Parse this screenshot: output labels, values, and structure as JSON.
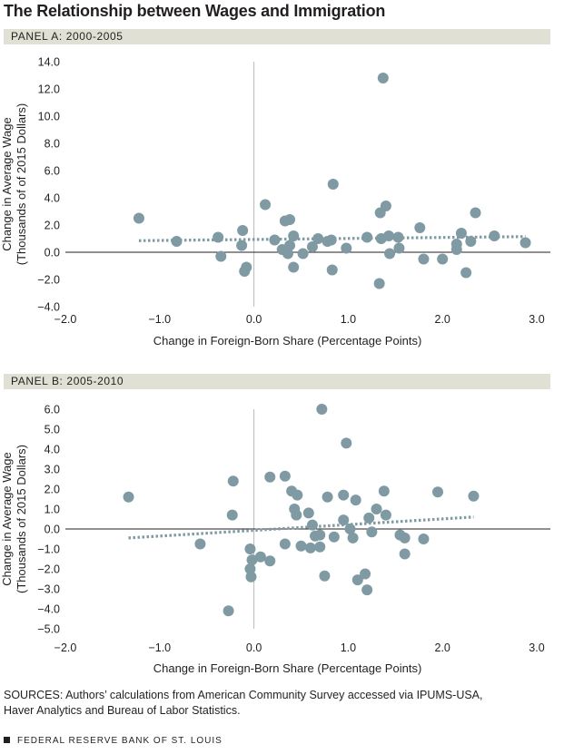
{
  "title": "The Relationship between Wages and Immigration",
  "colors": {
    "point": "#7f9aa3",
    "trend": "#7f9aa3",
    "panel_bar": "#e1e0d4",
    "axis": "#231f20"
  },
  "chart_data": [
    {
      "type": "scatter",
      "panel_label": "PANEL A: 2000-2005",
      "xlabel": "Change in Foreign-Born Share (Percentage Points)",
      "ylabel_line1": "Change in Average Wage",
      "ylabel_line2": "(Thousands of of 2015 Dollars)",
      "xlim": [
        -2.0,
        3.0
      ],
      "ylim": [
        -4.0,
        14.0
      ],
      "xticks": [
        "−2.0",
        "−1.0",
        "0.0",
        "1.0",
        "2.0",
        "3.0"
      ],
      "yticks": [
        "14.0",
        "12.0",
        "10.0",
        "8.0",
        "6.0",
        "4.0",
        "2.0",
        "0.0",
        "−2.0",
        "−4.0"
      ],
      "trend_line": {
        "x": [
          -1.22,
          2.88
        ],
        "y": [
          0.85,
          1.15
        ]
      },
      "points": [
        {
          "x": -1.22,
          "y": 2.5
        },
        {
          "x": -0.82,
          "y": 0.8
        },
        {
          "x": -0.38,
          "y": 1.1
        },
        {
          "x": -0.35,
          "y": -0.3
        },
        {
          "x": -0.13,
          "y": 0.5
        },
        {
          "x": -0.12,
          "y": 1.6
        },
        {
          "x": -0.1,
          "y": -1.4
        },
        {
          "x": -0.08,
          "y": -1.1
        },
        {
          "x": 0.12,
          "y": 3.5
        },
        {
          "x": 0.22,
          "y": 0.9
        },
        {
          "x": 0.3,
          "y": 0.2
        },
        {
          "x": 0.33,
          "y": 2.3
        },
        {
          "x": 0.36,
          "y": -0.1
        },
        {
          "x": 0.38,
          "y": 2.4
        },
        {
          "x": 0.38,
          "y": 0.5
        },
        {
          "x": 0.42,
          "y": -1.1
        },
        {
          "x": 0.42,
          "y": 1.2
        },
        {
          "x": 0.52,
          "y": -0.1
        },
        {
          "x": 0.62,
          "y": 0.4
        },
        {
          "x": 0.68,
          "y": 1.0
        },
        {
          "x": 0.78,
          "y": 0.8
        },
        {
          "x": 0.82,
          "y": 0.9
        },
        {
          "x": 0.83,
          "y": -1.3
        },
        {
          "x": 0.84,
          "y": 5.0
        },
        {
          "x": 0.98,
          "y": 0.3
        },
        {
          "x": 1.2,
          "y": 1.1
        },
        {
          "x": 1.33,
          "y": -2.3
        },
        {
          "x": 1.34,
          "y": 2.9
        },
        {
          "x": 1.35,
          "y": 1.0
        },
        {
          "x": 1.37,
          "y": 12.8
        },
        {
          "x": 1.4,
          "y": 3.4
        },
        {
          "x": 1.43,
          "y": 1.2
        },
        {
          "x": 1.44,
          "y": -0.1
        },
        {
          "x": 1.53,
          "y": 1.1
        },
        {
          "x": 1.54,
          "y": 0.3
        },
        {
          "x": 1.76,
          "y": 1.8
        },
        {
          "x": 1.8,
          "y": -0.5
        },
        {
          "x": 2.0,
          "y": -0.5
        },
        {
          "x": 2.15,
          "y": 0.2
        },
        {
          "x": 2.15,
          "y": 0.6
        },
        {
          "x": 2.2,
          "y": 1.4
        },
        {
          "x": 2.25,
          "y": -1.5
        },
        {
          "x": 2.3,
          "y": 0.8
        },
        {
          "x": 2.35,
          "y": 2.9
        },
        {
          "x": 2.55,
          "y": 1.2
        },
        {
          "x": 2.88,
          "y": 0.7
        }
      ]
    },
    {
      "type": "scatter",
      "panel_label": "PANEL B: 2005-2010",
      "xlabel": "Change in Foreign-Born Share (Percentage Points)",
      "ylabel_line1": "Change in Average Wage",
      "ylabel_line2": "(Thousands of 2015 Dollars)",
      "xlim": [
        -2.0,
        3.0
      ],
      "ylim": [
        -5.0,
        6.0
      ],
      "xticks": [
        "−2.0",
        "−1.0",
        "0.0",
        "1.0",
        "2.0",
        "3.0"
      ],
      "yticks": [
        "6.0",
        "5.0",
        "4.0",
        "3.0",
        "2.0",
        "1.0",
        "0.0",
        "−1.0",
        "−2.0",
        "−3.0",
        "−4.0",
        "−5.0"
      ],
      "trend_line": {
        "x": [
          -1.33,
          2.33
        ],
        "y": [
          -0.45,
          0.6
        ]
      },
      "points": [
        {
          "x": -1.33,
          "y": 1.6
        },
        {
          "x": -0.57,
          "y": -0.75
        },
        {
          "x": -0.27,
          "y": -4.1
        },
        {
          "x": -0.23,
          "y": 0.7
        },
        {
          "x": -0.22,
          "y": 2.4
        },
        {
          "x": -0.04,
          "y": -1.0
        },
        {
          "x": -0.04,
          "y": -2.0
        },
        {
          "x": -0.03,
          "y": -2.4
        },
        {
          "x": -0.02,
          "y": -1.55
        },
        {
          "x": 0.07,
          "y": -1.4
        },
        {
          "x": 0.17,
          "y": -1.6
        },
        {
          "x": 0.17,
          "y": 2.6
        },
        {
          "x": 0.33,
          "y": -0.75
        },
        {
          "x": 0.33,
          "y": 2.65
        },
        {
          "x": 0.4,
          "y": 1.9
        },
        {
          "x": 0.43,
          "y": 1.0
        },
        {
          "x": 0.45,
          "y": 0.7
        },
        {
          "x": 0.46,
          "y": 1.7
        },
        {
          "x": 0.5,
          "y": -0.85
        },
        {
          "x": 0.58,
          "y": 0.8
        },
        {
          "x": 0.6,
          "y": -0.95
        },
        {
          "x": 0.62,
          "y": 0.2
        },
        {
          "x": 0.65,
          "y": -0.35
        },
        {
          "x": 0.7,
          "y": -0.9
        },
        {
          "x": 0.7,
          "y": -0.3
        },
        {
          "x": 0.72,
          "y": 6.0
        },
        {
          "x": 0.75,
          "y": -2.35
        },
        {
          "x": 0.78,
          "y": 1.6
        },
        {
          "x": 0.85,
          "y": -0.4
        },
        {
          "x": 0.95,
          "y": 1.7
        },
        {
          "x": 0.95,
          "y": 0.45
        },
        {
          "x": 0.98,
          "y": 4.3
        },
        {
          "x": 1.02,
          "y": 0.0
        },
        {
          "x": 1.05,
          "y": -0.45
        },
        {
          "x": 1.08,
          "y": 1.45
        },
        {
          "x": 1.1,
          "y": -2.55
        },
        {
          "x": 1.18,
          "y": -2.25
        },
        {
          "x": 1.2,
          "y": -3.05
        },
        {
          "x": 1.22,
          "y": 0.55
        },
        {
          "x": 1.25,
          "y": -0.15
        },
        {
          "x": 1.3,
          "y": 1.0
        },
        {
          "x": 1.38,
          "y": 1.9
        },
        {
          "x": 1.4,
          "y": 0.7
        },
        {
          "x": 1.55,
          "y": -0.3
        },
        {
          "x": 1.6,
          "y": -0.45
        },
        {
          "x": 1.6,
          "y": -1.25
        },
        {
          "x": 1.8,
          "y": -0.5
        },
        {
          "x": 1.95,
          "y": 1.85
        },
        {
          "x": 2.33,
          "y": 1.65
        }
      ]
    }
  ],
  "sources_line1": "SOURCES: Authors’ calculations from American Community Survey accessed via IPUMS-USA,",
  "sources_line2": "Haver Analytics and Bureau of Labor Statistics.",
  "footer": "FEDERAL RESERVE BANK OF ST. LOUIS"
}
